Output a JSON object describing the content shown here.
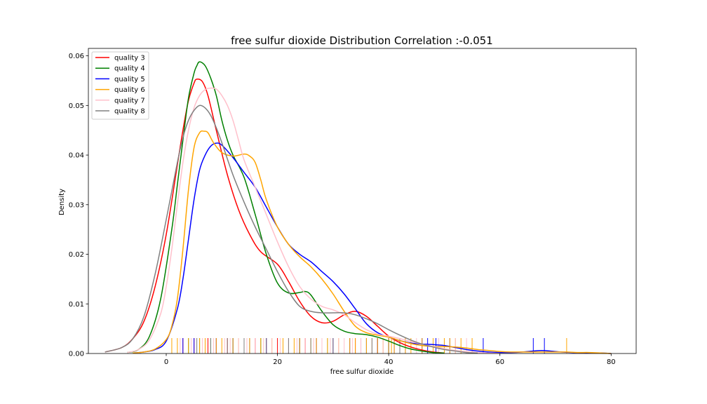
{
  "chart_data": {
    "type": "line",
    "title": "free sulfur dioxide Distribution Correlation :-0.051",
    "xlabel": "free sulfur dioxide",
    "ylabel": "Density",
    "xlim": [
      -14,
      84.5
    ],
    "ylim": [
      0,
      0.0615
    ],
    "xticks": [
      0,
      20,
      40,
      60,
      80
    ],
    "yticks": [
      0.0,
      0.01,
      0.02,
      0.03,
      0.04,
      0.05,
      0.06
    ],
    "ytick_labels": [
      "0.00",
      "0.01",
      "0.02",
      "0.03",
      "0.04",
      "0.05",
      "0.06"
    ],
    "legend_position": "upper left",
    "grid": false,
    "series": [
      {
        "name": "quality 3",
        "color": "#ff0000",
        "x": [
          -11,
          -8,
          -6,
          -4,
          -2,
          0,
          2,
          3,
          4,
          5,
          5.5,
          6.5,
          7.5,
          9,
          11,
          13,
          15,
          17,
          20,
          22,
          24,
          26,
          28,
          30,
          32,
          34,
          36,
          38,
          40,
          42,
          44,
          46,
          48,
          50
        ],
        "y": [
          0.0003,
          0.0012,
          0.003,
          0.0065,
          0.0135,
          0.024,
          0.038,
          0.045,
          0.051,
          0.0545,
          0.0553,
          0.0548,
          0.052,
          0.045,
          0.036,
          0.029,
          0.024,
          0.0205,
          0.018,
          0.0145,
          0.0105,
          0.0075,
          0.0062,
          0.0065,
          0.0078,
          0.0085,
          0.0075,
          0.0055,
          0.0035,
          0.0022,
          0.0013,
          0.0007,
          0.0003,
          0.0001
        ]
      },
      {
        "name": "quality 4",
        "color": "#008000",
        "x": [
          -7,
          -5,
          -3,
          -1,
          1,
          2,
          3,
          4,
          5,
          5.5,
          6,
          7,
          8,
          9,
          10,
          11,
          12,
          14,
          16,
          18,
          20,
          22,
          24,
          25,
          26,
          28,
          30,
          32,
          34,
          36,
          38,
          40,
          42,
          44,
          46,
          48,
          50
        ],
        "y": [
          0.0002,
          0.0008,
          0.0035,
          0.011,
          0.025,
          0.034,
          0.043,
          0.0515,
          0.0565,
          0.058,
          0.0588,
          0.058,
          0.0555,
          0.052,
          0.047,
          0.043,
          0.04,
          0.0355,
          0.028,
          0.02,
          0.0142,
          0.0122,
          0.0123,
          0.0125,
          0.0118,
          0.0085,
          0.0058,
          0.0045,
          0.004,
          0.0038,
          0.0033,
          0.0025,
          0.0016,
          0.0009,
          0.0005,
          0.0002,
          0.0001
        ]
      },
      {
        "name": "quality 5",
        "color": "#0000ff",
        "x": [
          -6,
          -4,
          -2,
          0,
          2,
          3,
          4,
          5,
          6,
          7,
          8,
          9,
          10,
          12,
          14,
          16,
          18,
          20,
          22,
          24,
          26,
          28,
          30,
          32,
          34,
          36,
          38,
          40,
          42,
          44,
          46,
          48,
          50,
          52,
          54,
          56,
          58,
          60,
          62,
          64,
          66,
          67.5,
          69,
          71,
          73,
          75,
          78,
          80
        ],
        "y": [
          0.0001,
          0.0003,
          0.0008,
          0.0025,
          0.009,
          0.015,
          0.023,
          0.031,
          0.037,
          0.04,
          0.0418,
          0.0424,
          0.042,
          0.0395,
          0.0365,
          0.0335,
          0.0295,
          0.0255,
          0.022,
          0.02,
          0.0185,
          0.0165,
          0.0145,
          0.012,
          0.009,
          0.006,
          0.0042,
          0.0033,
          0.0026,
          0.0021,
          0.0019,
          0.0018,
          0.0016,
          0.0012,
          0.0008,
          0.0005,
          0.0003,
          0.0002,
          0.0002,
          0.0003,
          0.0005,
          0.0006,
          0.0005,
          0.0003,
          0.0002,
          0.0001,
          0.0001,
          0.0
        ]
      },
      {
        "name": "quality 6",
        "color": "#ffa500",
        "x": [
          -6,
          -4,
          -2,
          0,
          1,
          2,
          3,
          4,
          5,
          6,
          6.8,
          7.5,
          8.5,
          10,
          12,
          14,
          15,
          16,
          17,
          18,
          20,
          22,
          24,
          26,
          28,
          30,
          32,
          34,
          36,
          38,
          40,
          42,
          44,
          46,
          48,
          50,
          52,
          54,
          56,
          58,
          60,
          62,
          64,
          66,
          68,
          70,
          72,
          74,
          76,
          78,
          80
        ],
        "y": [
          0.0001,
          0.0003,
          0.0009,
          0.0028,
          0.0055,
          0.011,
          0.021,
          0.033,
          0.0415,
          0.0445,
          0.0448,
          0.0445,
          0.0425,
          0.0405,
          0.0398,
          0.0402,
          0.0398,
          0.0385,
          0.035,
          0.031,
          0.0255,
          0.022,
          0.0195,
          0.0175,
          0.015,
          0.012,
          0.0085,
          0.0055,
          0.0042,
          0.0037,
          0.0033,
          0.0026,
          0.002,
          0.0016,
          0.0014,
          0.0014,
          0.0013,
          0.0011,
          0.0008,
          0.0006,
          0.0004,
          0.0003,
          0.0003,
          0.0003,
          0.0003,
          0.0003,
          0.0003,
          0.0002,
          0.0002,
          0.0001,
          0.0
        ]
      },
      {
        "name": "quality 7",
        "color": "#ffc0cb",
        "x": [
          -7,
          -5,
          -3,
          -1,
          0,
          1,
          2,
          3,
          4,
          5,
          6,
          7,
          8,
          9,
          10,
          11,
          12,
          13,
          14,
          16,
          18,
          20,
          22,
          24,
          26,
          28,
          30,
          32,
          34,
          36,
          38,
          40,
          42,
          44,
          46,
          48,
          50,
          52,
          54,
          56,
          58,
          60
        ],
        "y": [
          0.0002,
          0.0008,
          0.0028,
          0.008,
          0.0135,
          0.021,
          0.03,
          0.0385,
          0.045,
          0.0495,
          0.052,
          0.0532,
          0.0535,
          0.0533,
          0.052,
          0.05,
          0.047,
          0.043,
          0.039,
          0.0335,
          0.028,
          0.0225,
          0.0175,
          0.0135,
          0.011,
          0.0095,
          0.0088,
          0.0078,
          0.0062,
          0.0048,
          0.0039,
          0.0035,
          0.003,
          0.0024,
          0.0019,
          0.0014,
          0.001,
          0.0006,
          0.0004,
          0.0002,
          0.0001,
          0.0
        ]
      },
      {
        "name": "quality 8",
        "color": "#808080",
        "x": [
          -11,
          -8,
          -6,
          -4,
          -2,
          0,
          2,
          3,
          4,
          5,
          6,
          7,
          8,
          9,
          10,
          12,
          14,
          16,
          18,
          20,
          22,
          24,
          26,
          28,
          30,
          32,
          34,
          36,
          38,
          40,
          42,
          44,
          46,
          48,
          50,
          52,
          54,
          56
        ],
        "y": [
          0.0003,
          0.0012,
          0.003,
          0.0075,
          0.016,
          0.027,
          0.0385,
          0.0435,
          0.047,
          0.049,
          0.05,
          0.0495,
          0.048,
          0.0455,
          0.0425,
          0.036,
          0.0305,
          0.0255,
          0.021,
          0.0165,
          0.0125,
          0.0095,
          0.0085,
          0.0082,
          0.0082,
          0.0082,
          0.0078,
          0.007,
          0.006,
          0.0048,
          0.0037,
          0.0027,
          0.0019,
          0.0013,
          0.0008,
          0.0005,
          0.0002,
          0.0001
        ]
      }
    ],
    "rug": [
      {
        "color": "#ff0000",
        "x": [
          3,
          5,
          7.5,
          9,
          11,
          14,
          16,
          18,
          20,
          22,
          25,
          27,
          30,
          34,
          38
        ]
      },
      {
        "color": "#008000",
        "x": [
          4,
          6,
          8,
          12,
          15,
          17,
          21,
          24,
          29,
          36,
          40
        ]
      },
      {
        "color": "#0000ff",
        "x": [
          3,
          5,
          7,
          9,
          12,
          15,
          18,
          21,
          24,
          27,
          30,
          33,
          35,
          36,
          38,
          40,
          41,
          43,
          46,
          47,
          48.5,
          51,
          57,
          66,
          68
        ]
      },
      {
        "color": "#ffa500",
        "x": [
          1,
          2,
          4,
          6,
          7,
          9,
          10,
          12,
          13,
          15,
          17,
          19,
          21,
          23,
          24,
          26,
          27,
          29,
          31,
          33,
          34,
          36,
          37,
          38,
          39,
          40,
          40.5,
          41,
          42,
          43,
          44,
          46,
          48,
          50,
          51,
          52,
          53,
          55,
          72
        ]
      },
      {
        "color": "#ffc0cb",
        "x": [
          2.5,
          4.5,
          6.5,
          8.5,
          10.5,
          11.5,
          13,
          14.5,
          16,
          17.5,
          19,
          20.5,
          22,
          23.5,
          25,
          26.5,
          28,
          29.5,
          31,
          32,
          33.5,
          35,
          37,
          39,
          42,
          45,
          49,
          52,
          54
        ]
      },
      {
        "color": "#808080",
        "x": [
          5.5,
          8,
          11,
          14,
          18,
          22,
          26,
          30,
          37,
          42
        ]
      }
    ]
  }
}
